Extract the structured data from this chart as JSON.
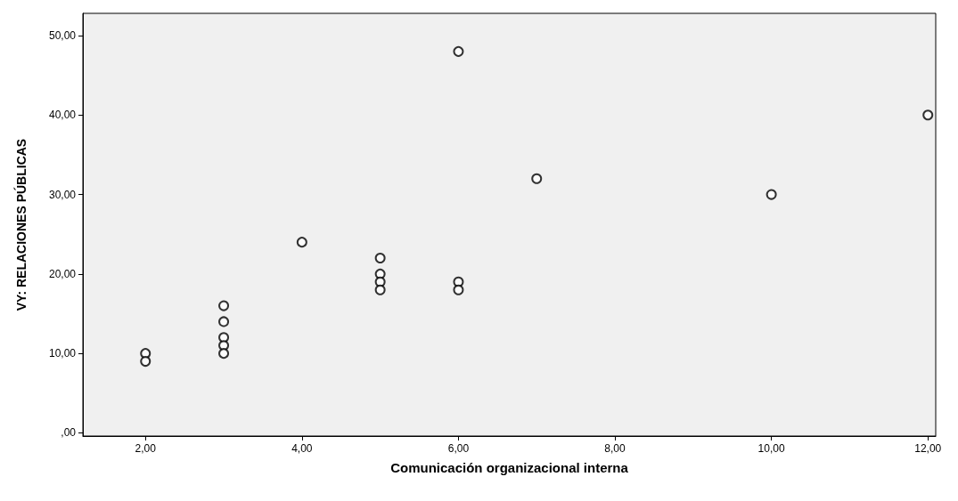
{
  "chart_data": {
    "type": "scatter",
    "xlabel": "Comunicación organizacional interna",
    "ylabel": "VY: RELACIONES PÚBLICAS",
    "x": [
      2,
      2,
      3,
      3,
      3,
      3,
      3,
      4,
      5,
      5,
      5,
      5,
      6,
      6,
      6,
      7,
      10,
      12
    ],
    "series": [
      {
        "color": "#000000",
        "values": [
          10,
          9,
          16,
          14,
          12,
          11,
          10,
          24,
          22,
          20,
          19,
          18,
          48,
          19,
          18,
          32,
          30,
          40
        ]
      }
    ],
    "xlim": [
      1.2,
      12.1
    ],
    "ylim": [
      -0.4,
      52.8
    ],
    "xticks": [
      {
        "value": 2,
        "label": "2,00"
      },
      {
        "value": 4,
        "label": "4,00"
      },
      {
        "value": 6,
        "label": "6,00"
      },
      {
        "value": 8,
        "label": "8,00"
      },
      {
        "value": 10,
        "label": "10,00"
      },
      {
        "value": 12,
        "label": "12,00"
      }
    ],
    "yticks": [
      {
        "value": 0,
        "label": ",00"
      },
      {
        "value": 10,
        "label": "10,00"
      },
      {
        "value": 20,
        "label": "20,00"
      },
      {
        "value": 30,
        "label": "30,00"
      },
      {
        "value": 40,
        "label": "40,00"
      },
      {
        "value": 50,
        "label": "50,00"
      }
    ],
    "grid": false,
    "marker": "circle"
  }
}
